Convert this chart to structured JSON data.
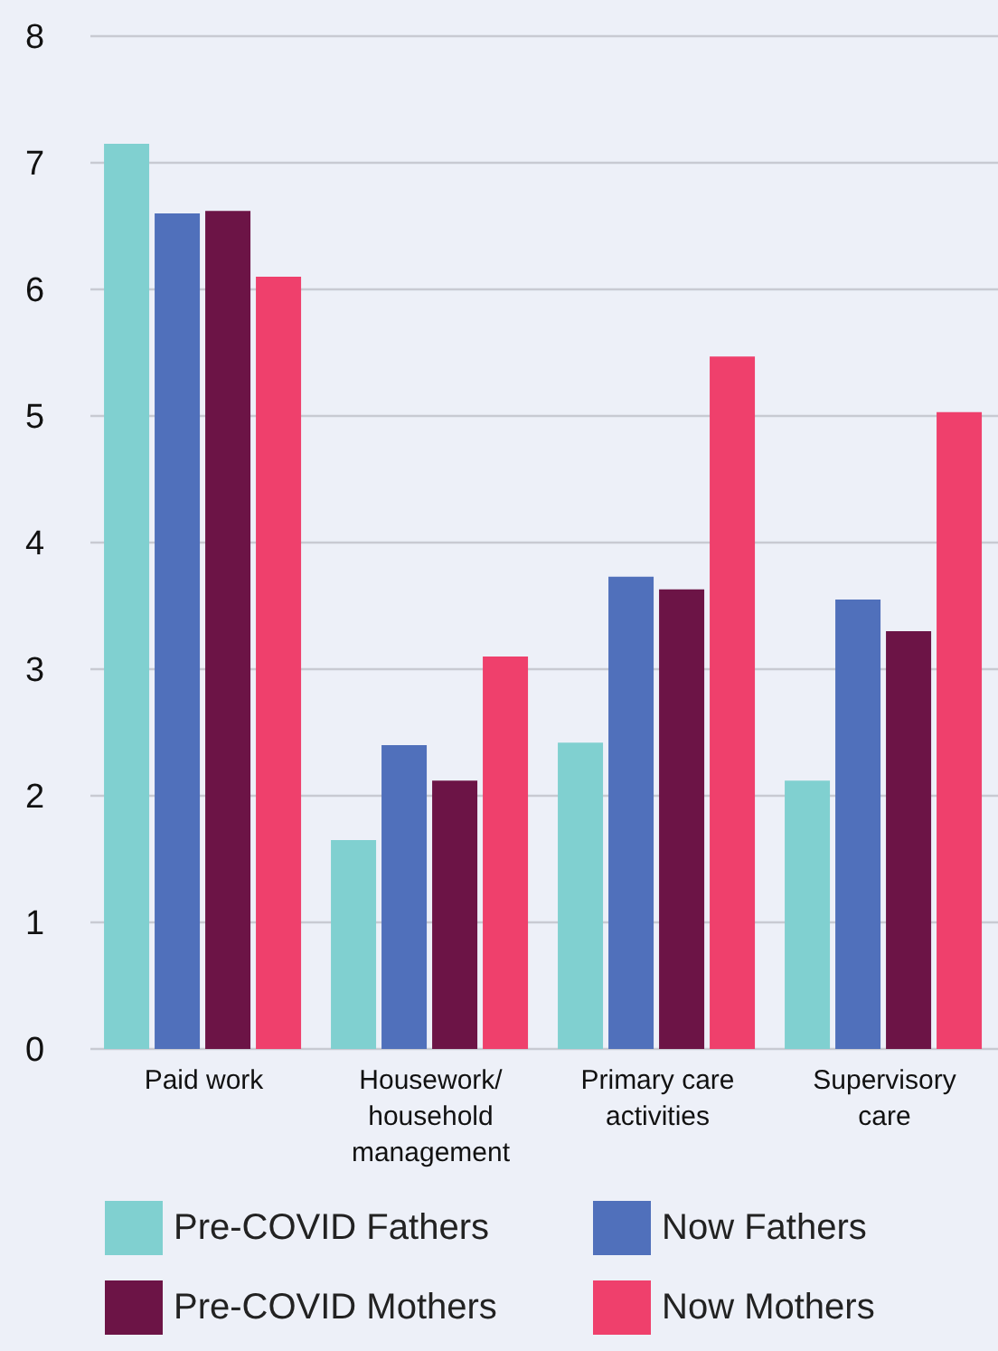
{
  "chart_data": {
    "type": "bar",
    "categories": [
      "Paid work",
      "Housework/household management",
      "Primary care activities",
      "Supervisory care"
    ],
    "series": [
      {
        "name": "Pre-COVID Fathers",
        "color": "#80d0d0",
        "values": [
          7.15,
          1.65,
          2.42,
          2.12
        ]
      },
      {
        "name": "Now Fathers",
        "color": "#5070bb",
        "values": [
          6.6,
          2.4,
          3.73,
          3.55
        ]
      },
      {
        "name": "Pre-COVID Mothers",
        "color": "#6c1446",
        "values": [
          6.62,
          2.12,
          3.63,
          3.3
        ]
      },
      {
        "name": "Now Mothers",
        "color": "#ef406c",
        "values": [
          6.1,
          3.1,
          5.47,
          5.03
        ]
      }
    ],
    "ylim": [
      0,
      8
    ],
    "yticks": [
      0,
      1,
      2,
      3,
      4,
      5,
      6,
      7,
      8
    ],
    "grid": "y",
    "legend": "bottom"
  }
}
